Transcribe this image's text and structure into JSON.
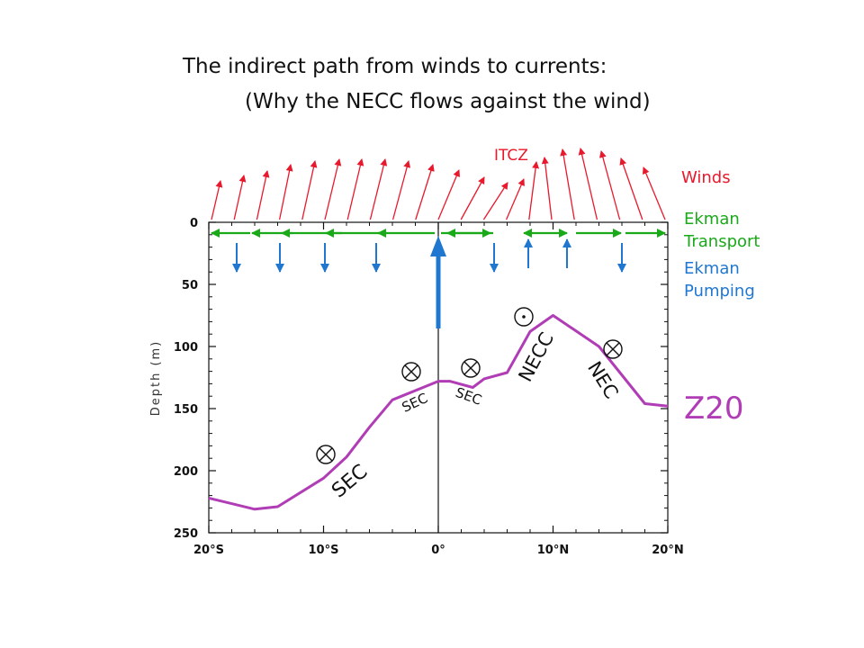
{
  "title": {
    "line1": "The indirect path from winds to currents:",
    "line2": "(Why the NECC flows against the wind)"
  },
  "axes": {
    "ylabel": "Depth (m)",
    "yticks": [
      "0",
      "50",
      "100",
      "150",
      "200",
      "250"
    ],
    "xticks": [
      "20°S",
      "10°S",
      "0°",
      "10°N",
      "20°N"
    ]
  },
  "labels": {
    "itcz": "ITCZ",
    "winds": "Winds",
    "ekman_transport_1": "Ekman",
    "ekman_transport_2": "Transport",
    "ekman_pumping_1": "Ekman",
    "ekman_pumping_2": "Pumping",
    "z20": "Z20"
  },
  "currents": {
    "sec_south": "SEC",
    "sec_mid": "SEC",
    "sec_eq": "SEC",
    "necc": "NECC",
    "nec": "NEC"
  },
  "colors": {
    "winds": "#e8192c",
    "ekman_transport": "#19a919",
    "ekman_pumping": "#1f77d0",
    "z20": "#b03db6",
    "axis": "#111111"
  },
  "chart_data": {
    "type": "line",
    "xlabel": "",
    "ylabel": "Depth (m)",
    "xlim": [
      -20,
      20
    ],
    "ylim": [
      250,
      0
    ],
    "series": [
      {
        "name": "Z20",
        "x": [
          -20,
          -16,
          -14,
          -10,
          -8,
          -6,
          -4,
          0,
          1,
          3,
          4,
          6,
          8,
          10,
          14,
          18,
          20
        ],
        "y": [
          222,
          231,
          229,
          206,
          189,
          165,
          143,
          128,
          128,
          133,
          126,
          121,
          88,
          75,
          100,
          146,
          148
        ]
      }
    ]
  }
}
